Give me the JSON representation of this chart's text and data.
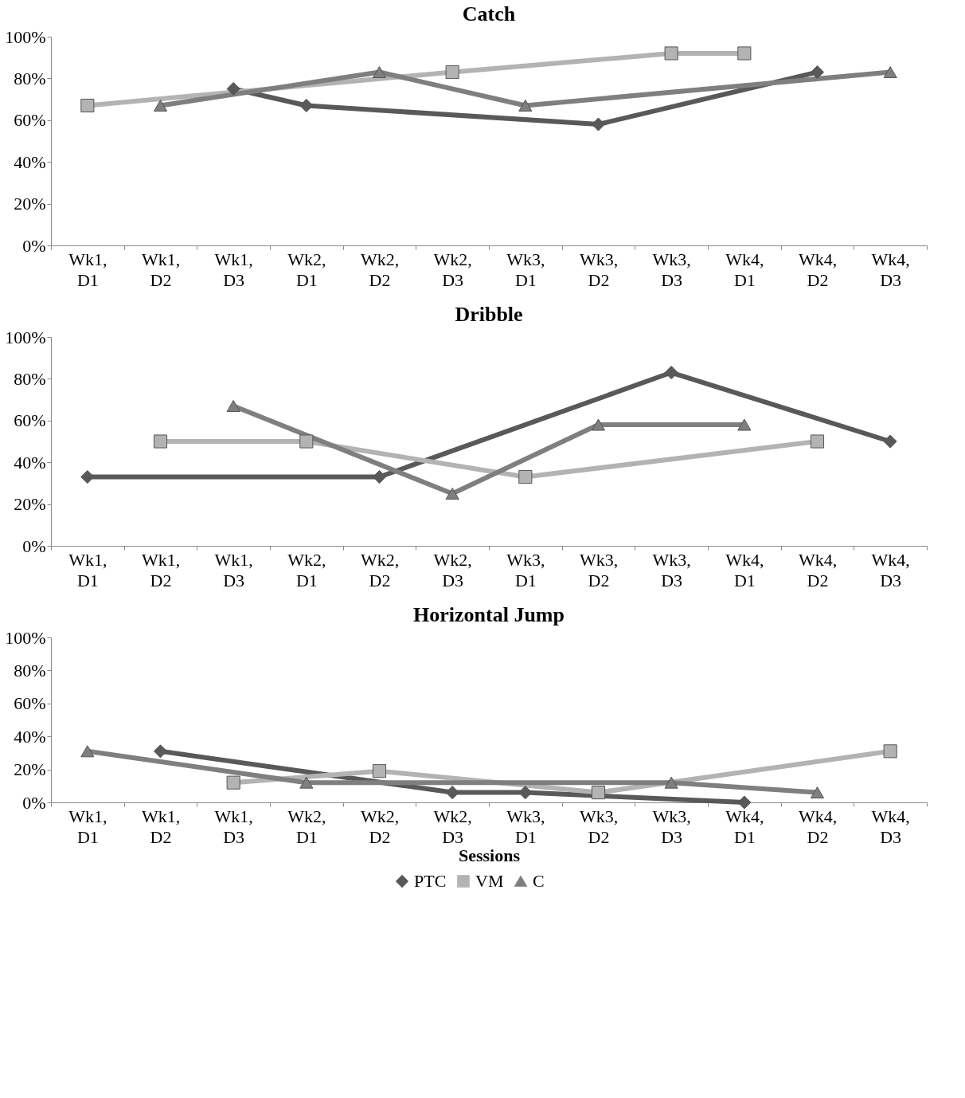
{
  "chart_data": [
    {
      "type": "line",
      "title": "Catch",
      "categories": [
        "Wk1, D1",
        "Wk1, D2",
        "Wk1, D3",
        "Wk2, D1",
        "Wk2, D2",
        "Wk2, D3",
        "Wk3, D1",
        "Wk3, D2",
        "Wk3, D3",
        "Wk4, D1",
        "Wk4, D2",
        "Wk4, D3"
      ],
      "ylim": [
        0,
        100
      ],
      "yticks": [
        {
          "value": 0,
          "label": "0%"
        },
        {
          "value": 20,
          "label": "20%"
        },
        {
          "value": 40,
          "label": "40%"
        },
        {
          "value": 60,
          "label": "60%"
        },
        {
          "value": 80,
          "label": "80%"
        },
        {
          "value": 100,
          "label": "100%"
        }
      ],
      "grid": false,
      "legend": "bottom",
      "series": [
        {
          "name": "PTC",
          "color": "#595959",
          "marker": "diamond",
          "values": [
            null,
            null,
            75,
            67,
            null,
            null,
            null,
            58,
            null,
            null,
            83,
            null
          ]
        },
        {
          "name": "VM",
          "color": "#b3b3b3",
          "marker": "square",
          "values": [
            67,
            null,
            null,
            null,
            null,
            83,
            null,
            null,
            92,
            92,
            null,
            null
          ]
        },
        {
          "name": "C",
          "color": "#7f7f7f",
          "marker": "triangle",
          "values": [
            null,
            67,
            null,
            null,
            83,
            null,
            67,
            null,
            null,
            null,
            null,
            83
          ]
        }
      ]
    },
    {
      "type": "line",
      "title": "Dribble",
      "categories": [
        "Wk1, D1",
        "Wk1, D2",
        "Wk1, D3",
        "Wk2, D1",
        "Wk2, D2",
        "Wk2, D3",
        "Wk3, D1",
        "Wk3, D2",
        "Wk3, D3",
        "Wk4, D1",
        "Wk4, D2",
        "Wk4, D3"
      ],
      "ylim": [
        0,
        100
      ],
      "yticks": [
        {
          "value": 0,
          "label": "0%"
        },
        {
          "value": 20,
          "label": "20%"
        },
        {
          "value": 40,
          "label": "40%"
        },
        {
          "value": 60,
          "label": "60%"
        },
        {
          "value": 80,
          "label": "80%"
        },
        {
          "value": 100,
          "label": "100%"
        }
      ],
      "grid": false,
      "legend": "bottom",
      "series": [
        {
          "name": "PTC",
          "color": "#595959",
          "marker": "diamond",
          "values": [
            33,
            null,
            null,
            null,
            33,
            null,
            null,
            null,
            83,
            null,
            null,
            50
          ]
        },
        {
          "name": "VM",
          "color": "#b3b3b3",
          "marker": "square",
          "values": [
            null,
            50,
            null,
            50,
            null,
            null,
            33,
            null,
            null,
            null,
            50,
            null
          ]
        },
        {
          "name": "C",
          "color": "#7f7f7f",
          "marker": "triangle",
          "values": [
            null,
            null,
            67,
            null,
            null,
            25,
            null,
            58,
            null,
            58,
            null,
            null
          ]
        }
      ]
    },
    {
      "type": "line",
      "title": "Horizontal Jump",
      "xlabel": "Sessions",
      "categories": [
        "Wk1, D1",
        "Wk1, D2",
        "Wk1, D3",
        "Wk2, D1",
        "Wk2, D2",
        "Wk2, D3",
        "Wk3, D1",
        "Wk3, D2",
        "Wk3, D3",
        "Wk4, D1",
        "Wk4, D2",
        "Wk4, D3"
      ],
      "ylim": [
        0,
        100
      ],
      "yticks": [
        {
          "value": 0,
          "label": "0%"
        },
        {
          "value": 20,
          "label": "20%"
        },
        {
          "value": 40,
          "label": "40%"
        },
        {
          "value": 60,
          "label": "60%"
        },
        {
          "value": 80,
          "label": "80%"
        },
        {
          "value": 100,
          "label": "100%"
        }
      ],
      "grid": false,
      "legend": "bottom",
      "series": [
        {
          "name": "PTC",
          "color": "#595959",
          "marker": "diamond",
          "values": [
            null,
            31,
            null,
            null,
            null,
            6,
            6,
            null,
            null,
            0,
            null,
            null
          ]
        },
        {
          "name": "VM",
          "color": "#b3b3b3",
          "marker": "square",
          "values": [
            null,
            null,
            12,
            null,
            19,
            null,
            null,
            6,
            null,
            null,
            null,
            31
          ]
        },
        {
          "name": "C",
          "color": "#7f7f7f",
          "marker": "triangle",
          "values": [
            31,
            null,
            null,
            12,
            null,
            null,
            null,
            null,
            12,
            null,
            6,
            null
          ]
        }
      ]
    }
  ]
}
